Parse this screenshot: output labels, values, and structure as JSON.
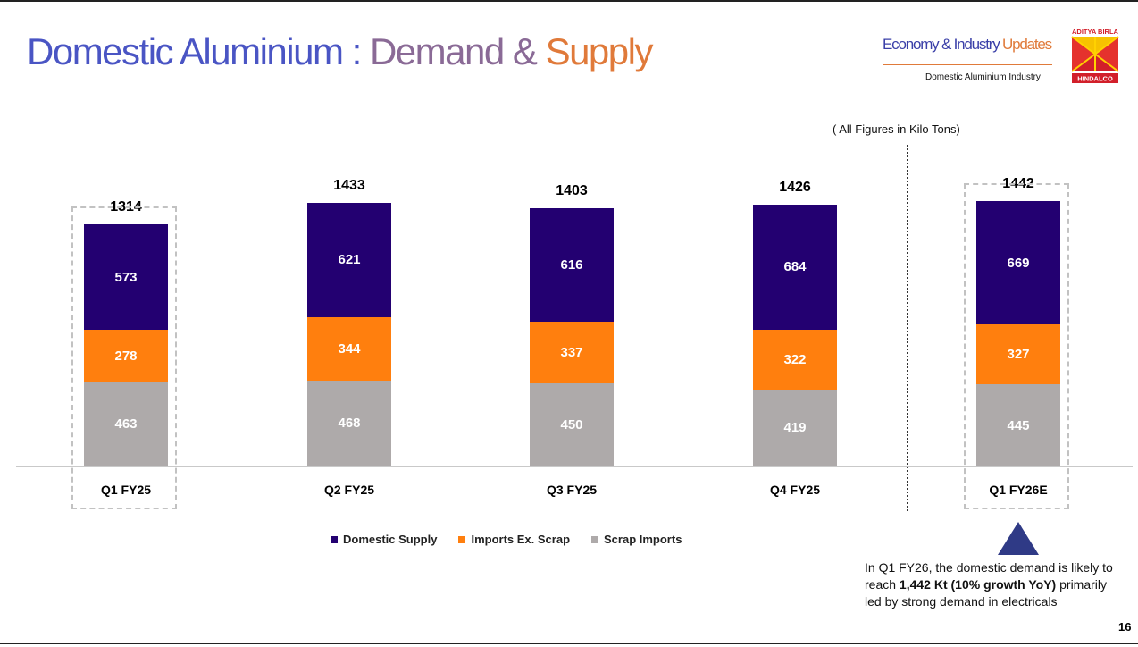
{
  "header": {
    "title_part1": "Domestic Aluminium : ",
    "title_part2": "Demand & ",
    "title_part3": "Supply",
    "econ_part1": "Economy & Industry ",
    "econ_part2": "Updates",
    "subtitle": "Domestic Aluminium Industry",
    "logo_top": "ADITYA BIRLA",
    "logo_bottom": "HINDALCO"
  },
  "note_units": "( All Figures in Kilo Tons)",
  "chart_data": {
    "type": "bar",
    "stacked": true,
    "categories": [
      "Q1 FY25",
      "Q2 FY25",
      "Q3 FY25",
      "Q4 FY25",
      "Q1 FY26E"
    ],
    "series": [
      {
        "name": "Scrap Imports",
        "color": "#aeaaaa",
        "values": [
          463,
          468,
          450,
          419,
          445
        ]
      },
      {
        "name": "Imports Ex. Scrap",
        "color": "#ff7f0e",
        "values": [
          278,
          344,
          337,
          322,
          327
        ]
      },
      {
        "name": "Domestic Supply",
        "color": "#230071",
        "values": [
          573,
          621,
          616,
          684,
          669
        ]
      }
    ],
    "totals": [
      1314,
      1433,
      1403,
      1426,
      1442
    ],
    "legend_order": [
      "Domestic Supply",
      "Imports Ex. Scrap",
      "Scrap Imports"
    ],
    "highlighted_categories": [
      "Q1 FY25",
      "Q1 FY26E"
    ],
    "legend_position": "bottom",
    "ylim": [
      0,
      1442
    ]
  },
  "callout": {
    "text_before": "In Q1 FY26, the domestic demand is likely to reach ",
    "text_bold": "1,442 Kt (10% growth YoY)",
    "text_after": " primarily led by strong demand in electricals"
  },
  "page_number": "16"
}
